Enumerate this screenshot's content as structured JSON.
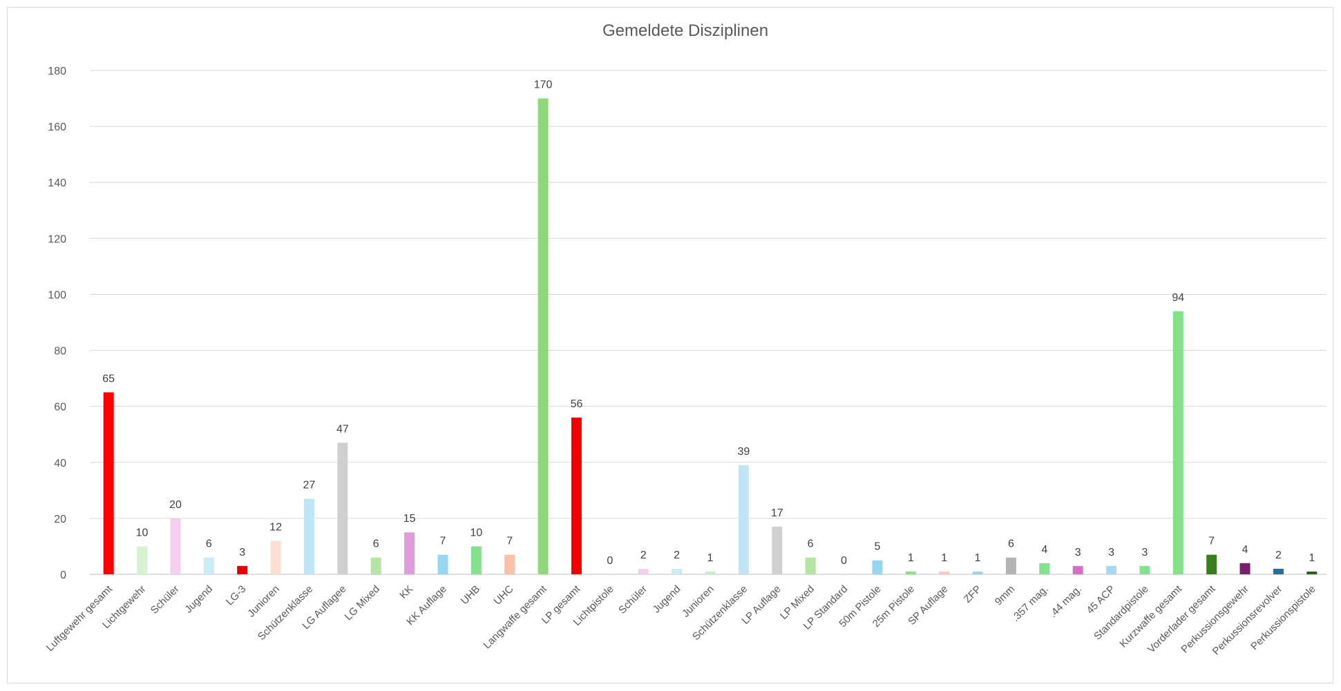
{
  "chart_data": {
    "type": "bar",
    "title": "Gemeldete Disziplinen",
    "xlabel": "",
    "ylabel": "",
    "ylim": [
      0,
      180
    ],
    "yticks": [
      "0",
      "20",
      "40",
      "60",
      "80",
      "100",
      "120",
      "140",
      "160",
      "180"
    ],
    "grid": true,
    "legend": "none",
    "categories": [
      "Luftgewehr gesamt",
      "Lichtgewehr",
      "Schüler",
      "Jugend",
      "LG-3",
      "Junioren",
      "Schützenklasse",
      "LG Auflagee",
      "LG Mixed",
      "KK",
      "KK Auflage",
      "UHB",
      "UHC",
      "Langwaffe gesamt",
      "LP gesamt",
      "Lichtpistole",
      "Schüler",
      "Jugend",
      "Junioren",
      "Schützenklasse",
      "LP Auflage",
      "LP Mixed",
      "LP Standard",
      "50m Pistole",
      "25m Pistole",
      "SP Auflage",
      "ZFP",
      "9mm",
      ".357 mag.",
      ".44 mag.",
      "45 ACP",
      "Standardpistole",
      "Kurzwaffe gesamt",
      "Vorderlader gesamt",
      "Perkussionsgewehr",
      "Perkussionsrevolver",
      "Perkussionspistole"
    ],
    "values": [
      65,
      10,
      20,
      6,
      3,
      12,
      27,
      47,
      6,
      15,
      7,
      10,
      7,
      170,
      56,
      0,
      2,
      2,
      1,
      39,
      17,
      6,
      0,
      5,
      1,
      1,
      1,
      6,
      4,
      3,
      3,
      3,
      94,
      7,
      4,
      2,
      1
    ],
    "colors": [
      "#ff0000",
      "#d9f2d0",
      "#f2ceef",
      "#c9ecf5",
      "#e60000",
      "#fde0d0",
      "#c0e6f5",
      "#d0d0d0",
      "#b4e5a2",
      "#e09ddb",
      "#94d7f0",
      "#83e28e",
      "#f7c0a8",
      "#8fd97a",
      "#f00000",
      "#fad8f5",
      "#f2ceef",
      "#c9ecf5",
      "#c6efce",
      "#c0e6f5",
      "#d0d0d0",
      "#b4e5a2",
      "#e0e0e0",
      "#94d7f0",
      "#83e28e",
      "#f7c7c7",
      "#94d7f0",
      "#b4b4b4",
      "#83e28e",
      "#d86ecc",
      "#a6d8f2",
      "#83e28e",
      "#85e08a",
      "#3a7d22",
      "#7b1f6b",
      "#1f6fa5",
      "#2e5e1e"
    ]
  },
  "chart_meta": {
    "grid_color": "#d9d9d9",
    "axis_color": "#bfbfbf"
  }
}
